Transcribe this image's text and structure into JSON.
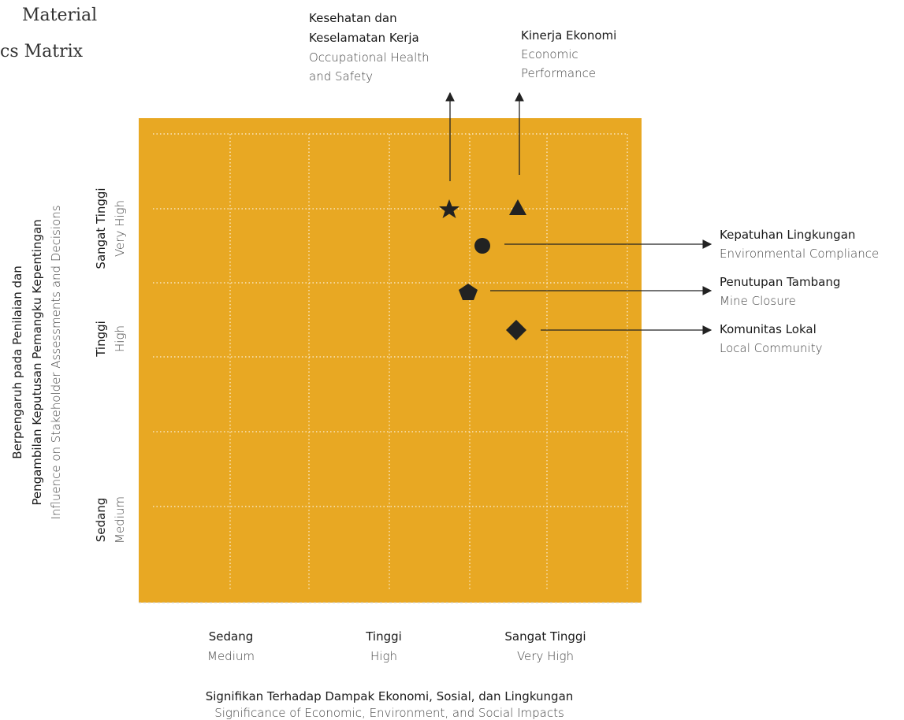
{
  "header": {
    "title": [
      "Material",
      "cs Matrix"
    ]
  },
  "y_axis": {
    "title": [
      "Berpengaruh pada Penilaian dan",
      "Pengambilan Keputusan Pemangku Kepentingan",
      "Influence on Stakeholder Assessments and Decisions"
    ],
    "levels": [
      {
        "label": "Sangat Tinggi",
        "sublabel": "Very High"
      },
      {
        "label": "Tinggi",
        "sublabel": "High"
      },
      {
        "label": "Sedang",
        "sublabel": "Medium"
      }
    ]
  },
  "x_axis": {
    "title": [
      "Signifikan Terhadap Dampak Ekonomi, Sosial, dan Lingkungan",
      "Significance of Economic, Environment, and Social Impacts"
    ],
    "levels": [
      {
        "label": "Sedang",
        "sublabel": "Medium"
      },
      {
        "label": "Tinggi",
        "sublabel": "High"
      },
      {
        "label": "Sangat Tinggi",
        "sublabel": "Very High"
      }
    ]
  },
  "topics": [
    {
      "label": [
        "Kesehatan dan",
        "Keselamatan Kerja"
      ],
      "sublabel": [
        "Occupational Health",
        "and Safety"
      ]
    },
    {
      "label": [
        "Kinerja Ekonomi"
      ],
      "sublabel": [
        "Economic",
        "Performance"
      ]
    },
    {
      "label": [
        "Kepatuhan Lingkungan"
      ],
      "sublabel": [
        "Environmental Compliance"
      ]
    },
    {
      "label": [
        "Penutupan Tambang"
      ],
      "sublabel": [
        "Mine Closure"
      ]
    },
    {
      "label": [
        "Komunitas Lokal"
      ],
      "sublabel": [
        "Local Community"
      ]
    }
  ]
}
